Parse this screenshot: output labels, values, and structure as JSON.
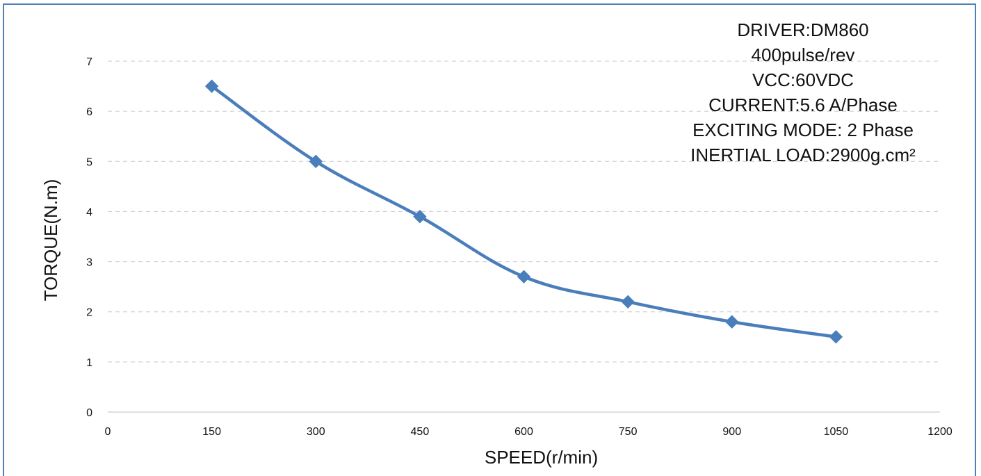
{
  "chart_data": {
    "type": "line",
    "xlabel": "SPEED(r/min)",
    "ylabel": "TORQUE(N.m)",
    "xlim": [
      0,
      1200
    ],
    "ylim": [
      0,
      7
    ],
    "x_ticks": [
      0,
      150,
      300,
      450,
      600,
      750,
      900,
      1050,
      1200
    ],
    "y_ticks": [
      0,
      1,
      2,
      3,
      4,
      5,
      6,
      7
    ],
    "grid": "horizontal dashed",
    "line_color": "#4a7ebb",
    "series": [
      {
        "x": [
          150,
          300,
          450,
          600,
          750,
          900,
          1050
        ],
        "values": [
          6.5,
          5.0,
          3.9,
          2.7,
          2.2,
          1.8,
          1.5
        ],
        "marker": "diamond",
        "smooth": true
      }
    ],
    "annotations": [
      "DRIVER:DM860",
      "400pulse/rev",
      "VCC:60VDC",
      "CURRENT:5.6 A/Phase",
      "EXCITING MODE: 2 Phase",
      "INERTIAL LOAD:2900g.cm²"
    ]
  }
}
